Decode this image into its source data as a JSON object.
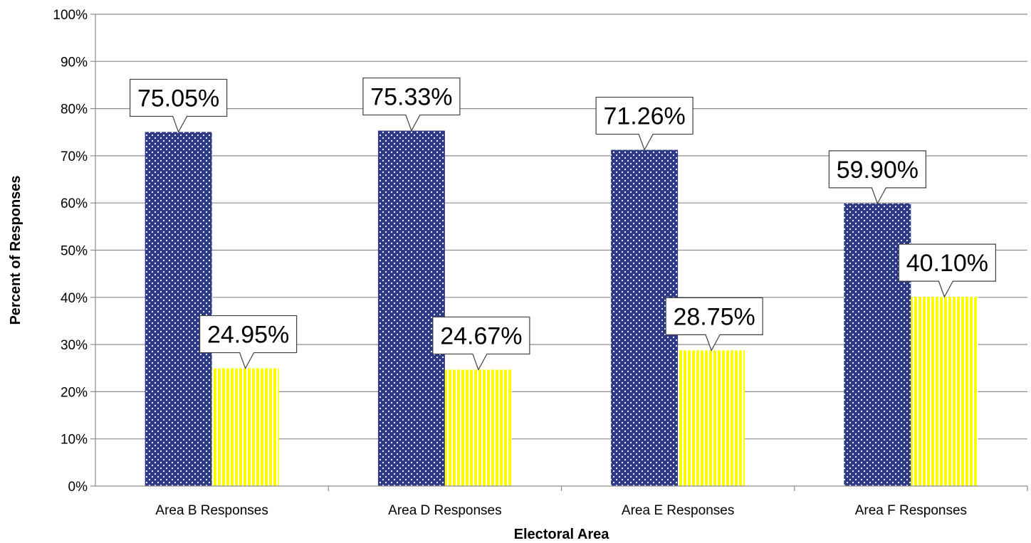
{
  "chart_data": {
    "type": "bar",
    "title": "",
    "xlabel": "Electoral Area",
    "ylabel": "Percent of Responses",
    "categories": [
      "Area B Responses",
      "Area D Responses",
      "Area E Responses",
      "Area F Responses"
    ],
    "series": [
      {
        "values": [
          75.05,
          75.33,
          71.26,
          59.9
        ],
        "labels": [
          "75.05%",
          "75.33%",
          "71.26%",
          "59.90%"
        ],
        "color": "#2E3A87",
        "pattern": "dots"
      },
      {
        "values": [
          24.95,
          24.67,
          28.75,
          40.1
        ],
        "labels": [
          "24.95%",
          "24.67%",
          "28.75%",
          "40.10%"
        ],
        "color": "#FFFF00",
        "pattern": "vertical-stripes"
      }
    ],
    "ylim": [
      0,
      100
    ],
    "yticks": [
      "0%",
      "10%",
      "20%",
      "30%",
      "40%",
      "50%",
      "60%",
      "70%",
      "80%",
      "90%",
      "100%"
    ],
    "grid": true,
    "legend": "none"
  }
}
